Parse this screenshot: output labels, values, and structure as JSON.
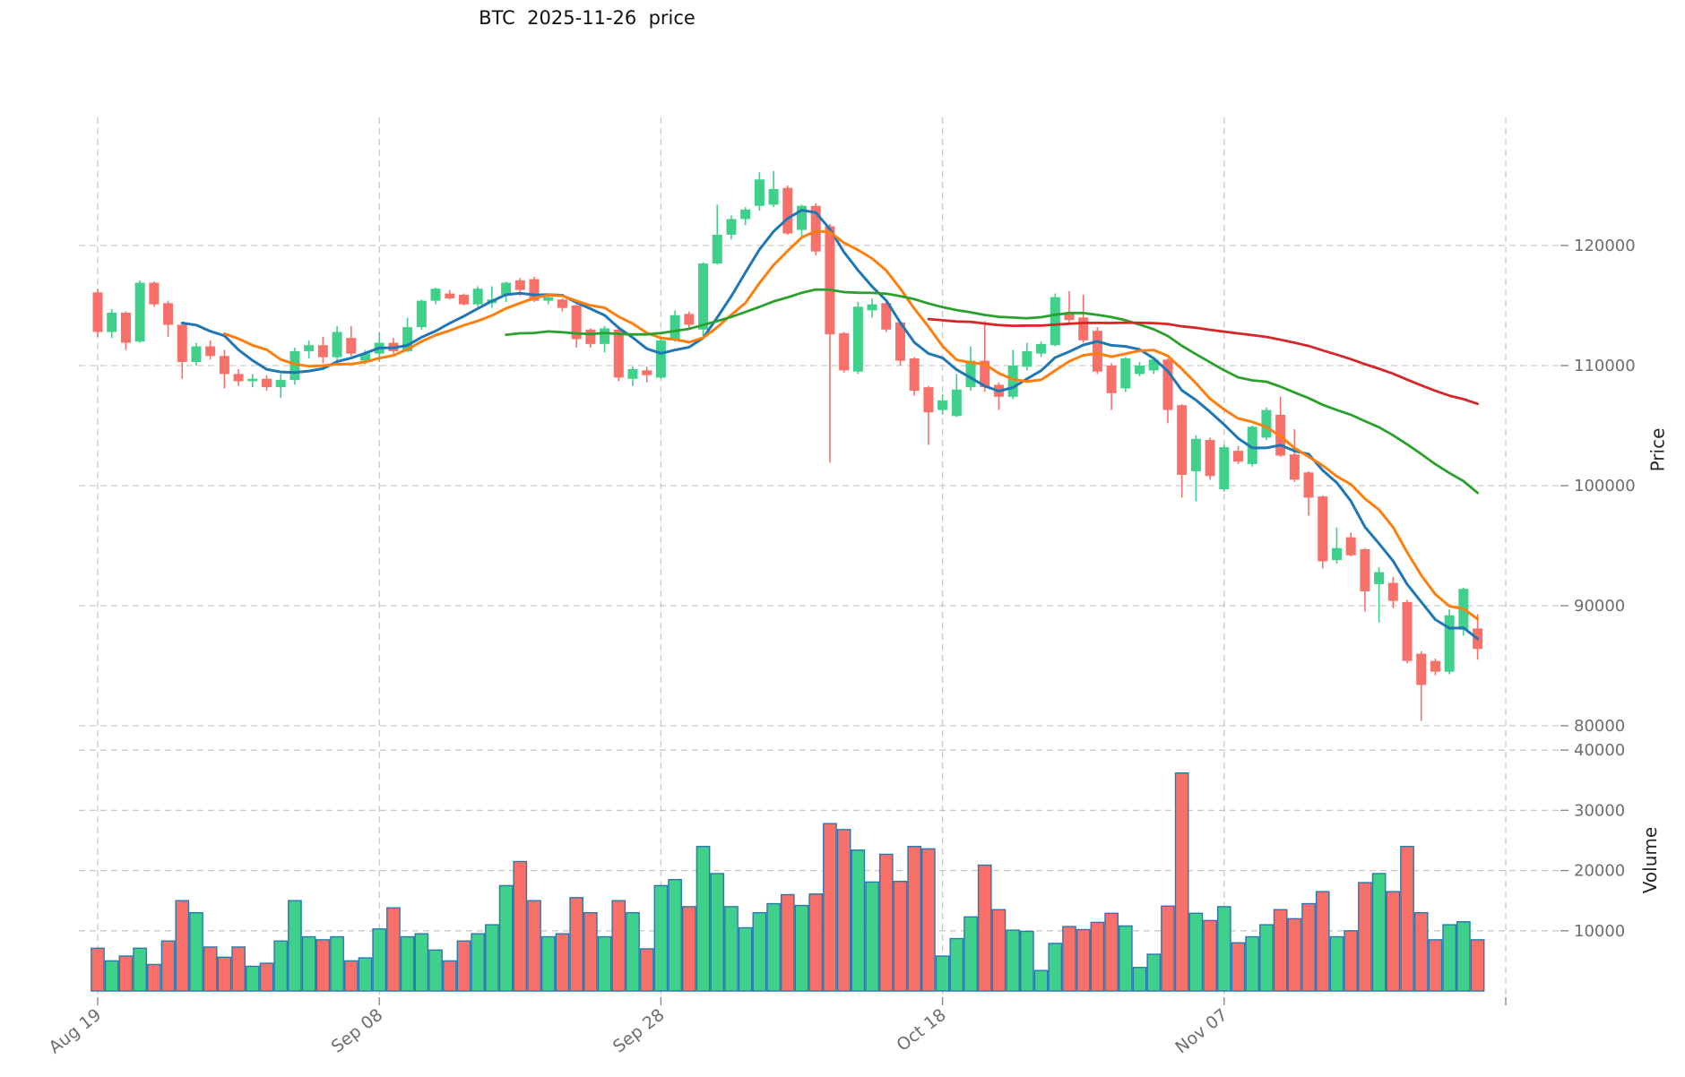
{
  "title": "BTC  2025-11-26  price",
  "axes": {
    "price_label": "Price",
    "volume_label": "Volume",
    "x_tick_labels": [
      "Aug 19",
      "Sep 08",
      "Sep 28",
      "Oct 18",
      "Nov 07",
      ""
    ],
    "x_tick_indices": [
      0,
      20,
      40,
      60,
      80,
      100
    ],
    "price_ticks": [
      120000,
      110000,
      100000,
      90000,
      80000
    ],
    "volume_ticks": [
      40000,
      30000,
      20000,
      10000
    ],
    "grid": true,
    "legend": "none"
  },
  "colors": {
    "up": "#3fd08b",
    "down": "#f8706a",
    "volume_edge": "#2879b0",
    "ma7": "#1f77b4",
    "ma10": "#ff7f0e",
    "ma30": "#2ca02c",
    "ma60": "#d62728",
    "grid": "#c9c9c9",
    "tick_text": "#6e6e6e",
    "title_text": "#111111"
  },
  "chart_data": {
    "type": "candlestick+volume",
    "title": "BTC  2025-11-26  price",
    "xlabel": "",
    "ylabel_price": "Price",
    "ylabel_volume": "Volume",
    "price_axis_range": [
      79000,
      127500
    ],
    "volume_axis_range": [
      0,
      42000
    ],
    "moving_averages": [
      {
        "window": 7,
        "color": "#1f77b4"
      },
      {
        "window": 10,
        "color": "#ff7f0e"
      },
      {
        "window": 30,
        "color": "#2ca02c"
      },
      {
        "window": 60,
        "color": "#d62728"
      }
    ],
    "dates": [
      "2025-08-19",
      "2025-08-20",
      "2025-08-21",
      "2025-08-22",
      "2025-08-23",
      "2025-08-24",
      "2025-08-25",
      "2025-08-26",
      "2025-08-27",
      "2025-08-28",
      "2025-08-29",
      "2025-08-30",
      "2025-08-31",
      "2025-09-01",
      "2025-09-02",
      "2025-09-03",
      "2025-09-04",
      "2025-09-05",
      "2025-09-06",
      "2025-09-07",
      "2025-09-08",
      "2025-09-09",
      "2025-09-10",
      "2025-09-11",
      "2025-09-12",
      "2025-09-13",
      "2025-09-14",
      "2025-09-15",
      "2025-09-16",
      "2025-09-17",
      "2025-09-18",
      "2025-09-19",
      "2025-09-20",
      "2025-09-21",
      "2025-09-22",
      "2025-09-23",
      "2025-09-24",
      "2025-09-25",
      "2025-09-26",
      "2025-09-27",
      "2025-09-28",
      "2025-09-29",
      "2025-09-30",
      "2025-10-01",
      "2025-10-02",
      "2025-10-03",
      "2025-10-04",
      "2025-10-05",
      "2025-10-06",
      "2025-10-07",
      "2025-10-08",
      "2025-10-09",
      "2025-10-10",
      "2025-10-11",
      "2025-10-12",
      "2025-10-13",
      "2025-10-14",
      "2025-10-15",
      "2025-10-16",
      "2025-10-17",
      "2025-10-18",
      "2025-10-19",
      "2025-10-20",
      "2025-10-21",
      "2025-10-22",
      "2025-10-23",
      "2025-10-24",
      "2025-10-25",
      "2025-10-26",
      "2025-10-27",
      "2025-10-28",
      "2025-10-29",
      "2025-10-30",
      "2025-10-31",
      "2025-11-01",
      "2025-11-02",
      "2025-11-03",
      "2025-11-04",
      "2025-11-05",
      "2025-11-06",
      "2025-11-07",
      "2025-11-08",
      "2025-11-09",
      "2025-11-10",
      "2025-11-11",
      "2025-11-12",
      "2025-11-13",
      "2025-11-14",
      "2025-11-15",
      "2025-11-16",
      "2025-11-17",
      "2025-11-18",
      "2025-11-19",
      "2025-11-20",
      "2025-11-21",
      "2025-11-22",
      "2025-11-23",
      "2025-11-24",
      "2025-11-25"
    ],
    "open": [
      116100,
      112800,
      114400,
      112000,
      116900,
      115200,
      113400,
      110300,
      111600,
      110800,
      109300,
      108700,
      108900,
      108200,
      108800,
      111200,
      111700,
      110700,
      112300,
      110400,
      111000,
      111900,
      111200,
      113200,
      115400,
      116000,
      115900,
      115100,
      115200,
      115900,
      117100,
      117200,
      115400,
      115500,
      115000,
      113000,
      111800,
      113000,
      108900,
      109600,
      109000,
      112100,
      114300,
      113000,
      118500,
      120900,
      122200,
      123300,
      123400,
      124800,
      121300,
      123300,
      121600,
      112700,
      109500,
      114600,
      115200,
      113600,
      110600,
      108200,
      106300,
      105800,
      108200,
      110400,
      108400,
      107400,
      109900,
      111000,
      111700,
      114400,
      114000,
      112900,
      110000,
      108100,
      109300,
      109600,
      110500,
      106700,
      101200,
      103800,
      99700,
      102900,
      101800,
      104000,
      105900,
      102600,
      101100,
      99100,
      93800,
      95700,
      94700,
      91800,
      91900,
      90300,
      86000,
      85400,
      84500,
      88000,
      88100
    ],
    "high": [
      116400,
      114700,
      114500,
      117100,
      117000,
      115400,
      113500,
      111900,
      112100,
      111300,
      109700,
      109300,
      109200,
      109300,
      111500,
      112100,
      112400,
      113300,
      113300,
      111300,
      112800,
      112300,
      114000,
      115500,
      116500,
      116300,
      116000,
      116600,
      116600,
      117000,
      117300,
      117400,
      115800,
      115600,
      115100,
      113100,
      113300,
      113100,
      109900,
      109900,
      112200,
      114600,
      114500,
      118600,
      123400,
      122500,
      123200,
      126100,
      126200,
      125000,
      123400,
      123500,
      121800,
      112800,
      115300,
      115600,
      115400,
      113700,
      110700,
      108300,
      107600,
      109300,
      111600,
      113700,
      108600,
      111300,
      111900,
      112000,
      116000,
      116200,
      115900,
      113200,
      110200,
      110700,
      110300,
      110700,
      110600,
      106800,
      104200,
      104000,
      103400,
      103300,
      105000,
      106500,
      107400,
      104700,
      101200,
      99200,
      96500,
      96100,
      94800,
      93200,
      92400,
      90500,
      86200,
      85600,
      89700,
      91500,
      89300
    ],
    "low": [
      112400,
      112300,
      111300,
      111900,
      114900,
      112400,
      108900,
      110000,
      110500,
      108100,
      108300,
      108200,
      107900,
      107300,
      108400,
      110600,
      110200,
      110400,
      110800,
      110100,
      110300,
      111000,
      111100,
      113000,
      115100,
      115500,
      115000,
      114900,
      114800,
      115300,
      115800,
      115300,
      115100,
      114500,
      111500,
      111500,
      111100,
      108700,
      108300,
      108600,
      108900,
      112000,
      113100,
      112300,
      118400,
      120500,
      121700,
      122900,
      123200,
      120900,
      120800,
      119200,
      101900,
      109400,
      109300,
      114000,
      112800,
      110000,
      107500,
      103400,
      105900,
      105700,
      107900,
      107800,
      106300,
      107200,
      109600,
      110700,
      111600,
      113500,
      111900,
      109300,
      106300,
      107800,
      109100,
      109300,
      105200,
      99000,
      98700,
      100500,
      99500,
      101800,
      101600,
      103800,
      102400,
      100300,
      97500,
      93100,
      93500,
      94100,
      89500,
      88600,
      89800,
      85200,
      80400,
      84200,
      84300,
      87500,
      85500
    ],
    "close": [
      112800,
      114400,
      111900,
      116900,
      115100,
      113400,
      110300,
      111600,
      110800,
      109300,
      108700,
      108900,
      108200,
      108800,
      111200,
      111700,
      110700,
      112800,
      111000,
      111000,
      111900,
      111200,
      113200,
      115400,
      116400,
      115600,
      115100,
      116400,
      115500,
      116900,
      116300,
      115400,
      115700,
      114800,
      112200,
      111800,
      113100,
      109000,
      109700,
      109200,
      112100,
      114200,
      113400,
      118500,
      120900,
      122200,
      123000,
      125500,
      124700,
      121000,
      123300,
      119500,
      112600,
      109600,
      114900,
      115100,
      113000,
      110400,
      107900,
      106100,
      107100,
      108000,
      110400,
      108200,
      107400,
      110000,
      111200,
      111800,
      115700,
      113800,
      112100,
      109500,
      107700,
      110600,
      110000,
      110500,
      106300,
      100900,
      103900,
      100800,
      103200,
      102000,
      104900,
      106300,
      102500,
      100500,
      99000,
      93700,
      94800,
      94200,
      91200,
      92800,
      90400,
      85400,
      83400,
      84500,
      89200,
      91400,
      86400
    ],
    "volume": [
      7100,
      5000,
      5800,
      7100,
      4400,
      8300,
      15000,
      13000,
      7300,
      5600,
      7300,
      4100,
      4600,
      8300,
      15000,
      9000,
      8500,
      9000,
      5000,
      5500,
      10300,
      13800,
      9000,
      9500,
      6800,
      5000,
      8300,
      9500,
      11000,
      17500,
      21500,
      15000,
      9000,
      9500,
      15500,
      13000,
      9000,
      15000,
      13000,
      7000,
      17500,
      18500,
      14000,
      24000,
      19500,
      14000,
      10500,
      13000,
      14500,
      16000,
      14200,
      16100,
      27800,
      26800,
      23400,
      18100,
      22700,
      18200,
      24000,
      23600,
      5800,
      8700,
      12300,
      20900,
      13500,
      10100,
      9900,
      3400,
      7900,
      10700,
      10200,
      11400,
      12900,
      10800,
      3900,
      6100,
      14100,
      36200,
      12900,
      11700,
      14000,
      8000,
      9000,
      11000,
      13500,
      12000,
      14500,
      16500,
      9000,
      10000,
      18000,
      19500,
      16500,
      24000,
      13000,
      8500,
      11000,
      11500,
      8500
    ]
  }
}
